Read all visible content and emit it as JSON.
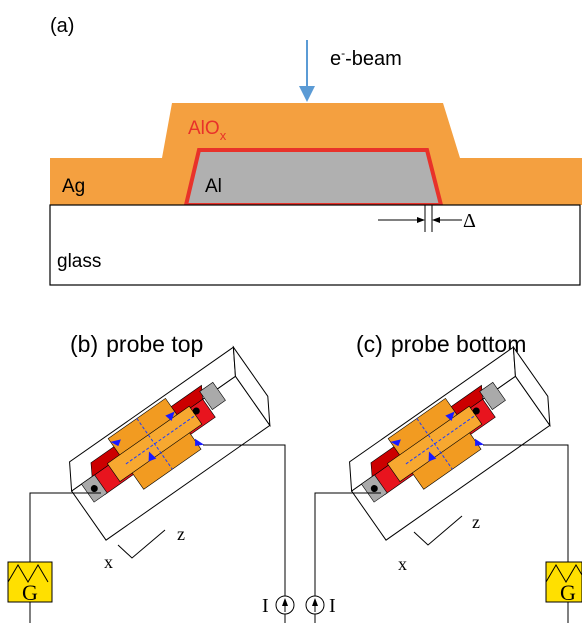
{
  "panel_a": {
    "label": "(a)",
    "beam": {
      "base": "e",
      "sup": "-",
      "rest": "-beam"
    },
    "oxide": {
      "base": "AlO",
      "sub": "x"
    },
    "silver": "Ag",
    "aluminum": "Al",
    "gap": "Δ",
    "substrate": "glass"
  },
  "panel_b": {
    "label": "(b)",
    "title": "probe top",
    "axis_z": "z",
    "axis_x": "x",
    "source": "G",
    "current": "I"
  },
  "panel_c": {
    "label": "(c)",
    "title": "probe bottom",
    "axis_z": "z",
    "axis_x": "x",
    "source": "G",
    "current": "I"
  }
}
